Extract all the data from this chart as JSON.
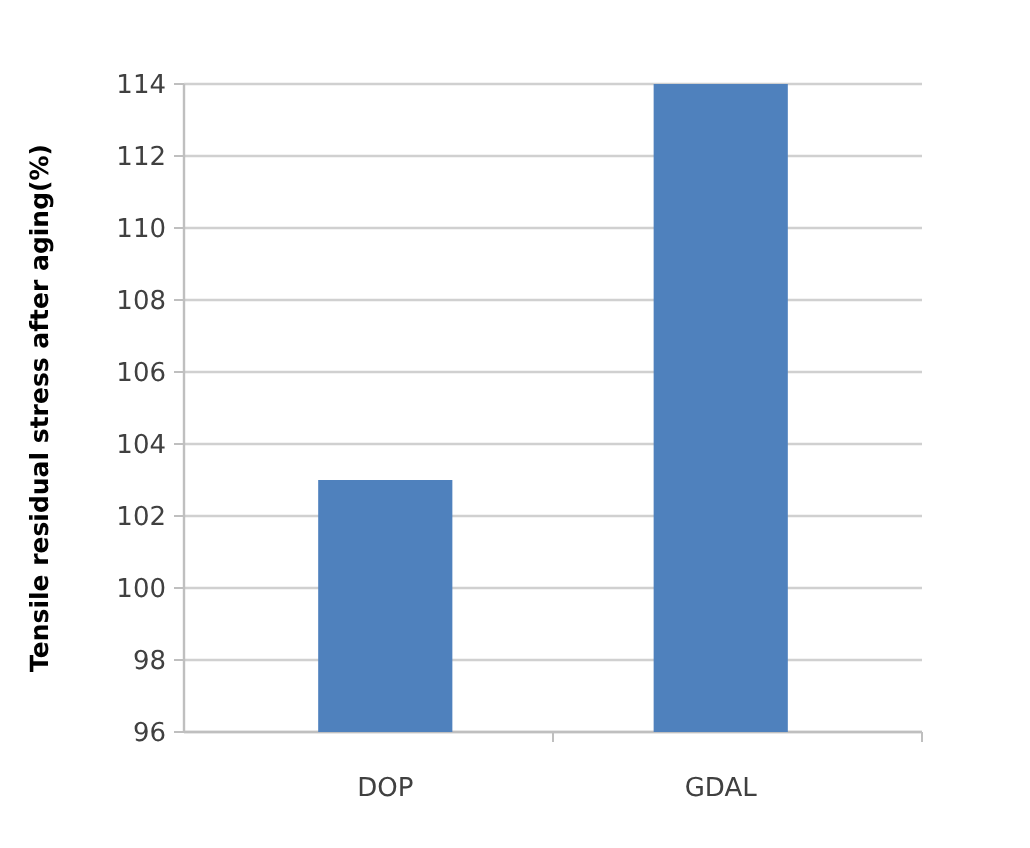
{
  "chart_data": {
    "type": "bar",
    "ylabel": "Tensile residual stress after aging(%)",
    "categories": [
      "DOP",
      "GDAL"
    ],
    "values": [
      103,
      114
    ],
    "color": "#4f81bd",
    "ylim": [
      96,
      114
    ],
    "yticks": [
      96,
      98,
      100,
      102,
      104,
      106,
      108,
      110,
      112,
      114
    ],
    "grid": "y"
  }
}
